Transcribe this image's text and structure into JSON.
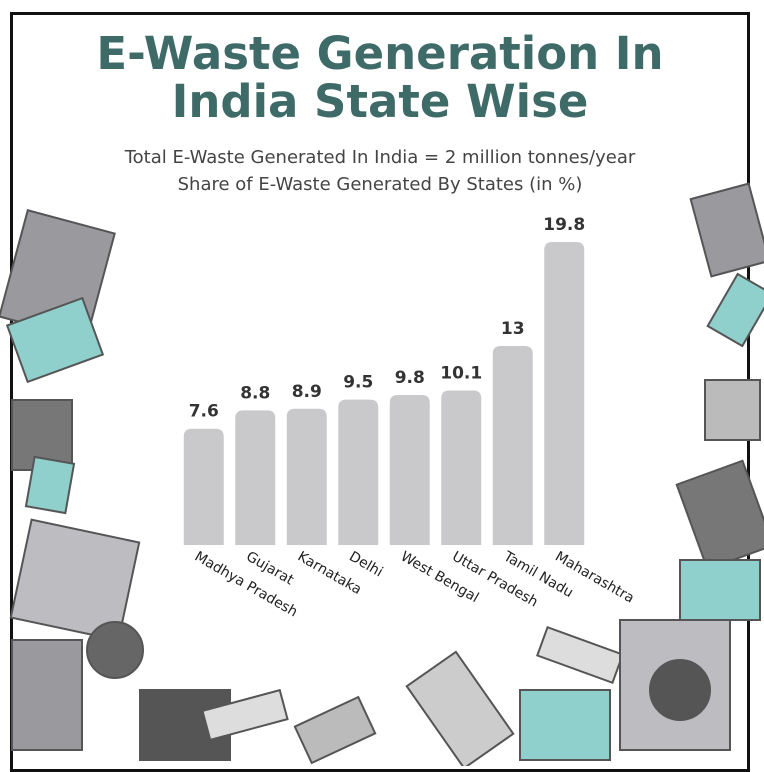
{
  "chart_data": {
    "type": "bar",
    "title": "E-Waste Generation In India State Wise",
    "subtitles": [
      "Total E-Waste Generated In India = 2 million tonnes/year",
      "Share of E-Waste Generated By States (in %)"
    ],
    "categories": [
      "Madhya Pradesh",
      "Gujarat",
      "Karnataka",
      "Delhi",
      "West Bengal",
      "Uttar Pradesh",
      "Tamil Nadu",
      "Maharashtra"
    ],
    "values": [
      7.6,
      8.8,
      8.9,
      9.5,
      9.8,
      10.1,
      13,
      19.8
    ],
    "color": "#c9c9cc"
  }
}
